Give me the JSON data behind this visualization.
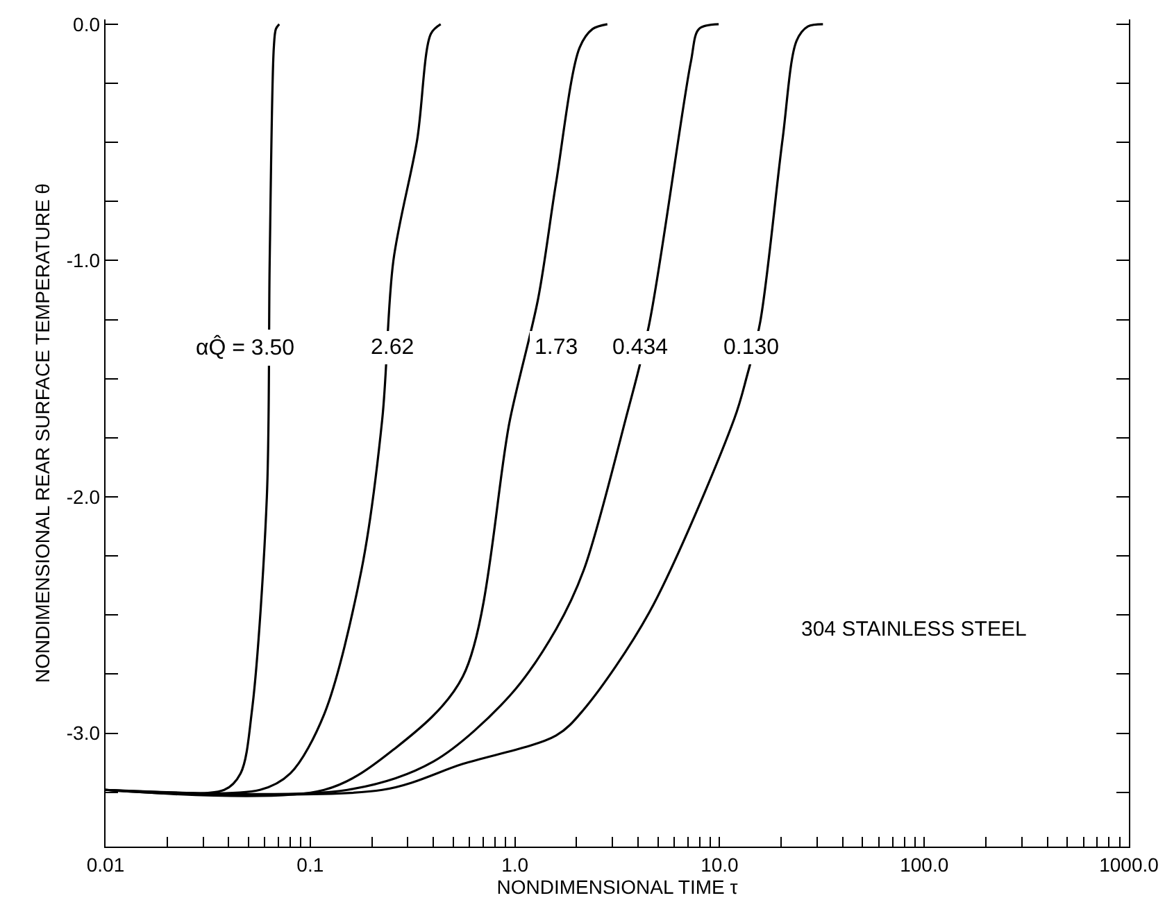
{
  "chart_data": {
    "type": "line",
    "xlabel": "NONDIMENSIONAL TIME τ",
    "ylabel": "NONDIMENSIONAL REAR SURFACE TEMPERATURE θ",
    "log": "x",
    "grid": false,
    "marker": "none",
    "line_style": "solid",
    "xlim": [
      0.01,
      1000
    ],
    "ylim": [
      -3.48,
      0.02
    ],
    "xticks": [
      {
        "value": 0.01,
        "label": "0.01"
      },
      {
        "value": 0.02,
        "label": null
      },
      {
        "value": 0.03,
        "label": null
      },
      {
        "value": 0.04,
        "label": null
      },
      {
        "value": 0.05,
        "label": null
      },
      {
        "value": 0.06,
        "label": null
      },
      {
        "value": 0.07,
        "label": null
      },
      {
        "value": 0.08,
        "label": null
      },
      {
        "value": 0.09,
        "label": null
      },
      {
        "value": 0.1,
        "label": "0.1"
      },
      {
        "value": 0.2,
        "label": null
      },
      {
        "value": 0.3,
        "label": null
      },
      {
        "value": 0.4,
        "label": null
      },
      {
        "value": 0.5,
        "label": null
      },
      {
        "value": 0.6,
        "label": null
      },
      {
        "value": 0.7,
        "label": null
      },
      {
        "value": 0.8,
        "label": null
      },
      {
        "value": 0.9,
        "label": null
      },
      {
        "value": 1,
        "label": "1.0"
      },
      {
        "value": 2,
        "label": null
      },
      {
        "value": 3,
        "label": null
      },
      {
        "value": 4,
        "label": null
      },
      {
        "value": 5,
        "label": null
      },
      {
        "value": 6,
        "label": null
      },
      {
        "value": 7,
        "label": null
      },
      {
        "value": 8,
        "label": null
      },
      {
        "value": 9,
        "label": null
      },
      {
        "value": 10,
        "label": "10.0"
      },
      {
        "value": 20,
        "label": null
      },
      {
        "value": 30,
        "label": null
      },
      {
        "value": 40,
        "label": null
      },
      {
        "value": 50,
        "label": null
      },
      {
        "value": 60,
        "label": null
      },
      {
        "value": 70,
        "label": null
      },
      {
        "value": 80,
        "label": null
      },
      {
        "value": 90,
        "label": null
      },
      {
        "value": 100,
        "label": "100.0"
      },
      {
        "value": 200,
        "label": null
      },
      {
        "value": 300,
        "label": null
      },
      {
        "value": 400,
        "label": null
      },
      {
        "value": 500,
        "label": null
      },
      {
        "value": 600,
        "label": null
      },
      {
        "value": 700,
        "label": null
      },
      {
        "value": 800,
        "label": null
      },
      {
        "value": 900,
        "label": null
      },
      {
        "value": 1000,
        "label": "1000.0"
      }
    ],
    "yticks": [
      {
        "value": 0,
        "label": "0.0"
      },
      {
        "value": -0.25,
        "label": null
      },
      {
        "value": -0.5,
        "label": null
      },
      {
        "value": -0.75,
        "label": null
      },
      {
        "value": -1,
        "label": "-1.0"
      },
      {
        "value": -1.25,
        "label": null
      },
      {
        "value": -1.5,
        "label": null
      },
      {
        "value": -1.75,
        "label": null
      },
      {
        "value": -2,
        "label": "-2.0"
      },
      {
        "value": -2.25,
        "label": null
      },
      {
        "value": -2.5,
        "label": null
      },
      {
        "value": -2.75,
        "label": null
      },
      {
        "value": -3,
        "label": "-3.0"
      },
      {
        "value": -3.25,
        "label": null
      }
    ],
    "series": [
      {
        "color": "#000000",
        "x": [
          0.01,
          0.038,
          0.0457,
          0.052,
          0.0614,
          0.0634,
          0.0664,
          0.068,
          0.0706
        ],
        "values": [
          -3.24,
          -3.24,
          -3.17,
          -2.9,
          -2.0,
          -1.0,
          -0.1,
          -0.02,
          0.0
        ]
      },
      {
        "color": "#000000",
        "x": [
          0.01,
          0.0568,
          0.08,
          0.117,
          0.178,
          0.225,
          0.255,
          0.333,
          0.389,
          0.434
        ],
        "values": [
          -3.24,
          -3.24,
          -3.17,
          -2.92,
          -2.31,
          -1.67,
          -1.0,
          -0.49,
          -0.04,
          0.0
        ]
      },
      {
        "color": "#000000",
        "x": [
          0.01,
          0.117,
          0.255,
          0.557,
          0.948,
          1.3,
          1.59,
          2.07,
          2.4,
          2.83
        ],
        "values": [
          -3.24,
          -3.24,
          -3.07,
          -2.76,
          -1.67,
          -1.16,
          -0.67,
          -0.1,
          -0.02,
          0.0
        ]
      },
      {
        "color": "#000000",
        "x": [
          0.01,
          0.152,
          0.4,
          0.948,
          1.59,
          2.17,
          3.48,
          4.53,
          7.24,
          7.94,
          9.9
        ],
        "values": [
          -3.24,
          -3.24,
          -3.12,
          -2.84,
          -2.56,
          -2.31,
          -1.67,
          -1.27,
          -0.16,
          -0.02,
          0.0
        ]
      },
      {
        "color": "#000000",
        "x": [
          0.01,
          0.225,
          0.557,
          1.59,
          2.17,
          4.53,
          11.8,
          13.6,
          15.8,
          20.3,
          23.8,
          27,
          32
        ],
        "values": [
          -3.24,
          -3.24,
          -3.13,
          -3.01,
          -2.9,
          -2.49,
          -1.67,
          -1.49,
          -1.26,
          -0.49,
          -0.07,
          -0.01,
          0.0
        ]
      }
    ],
    "annotations": [
      {
        "text": "αQ̂ = 3.50",
        "x": 0.063,
        "y": -1.37
      },
      {
        "text": "2.62",
        "x": 0.25,
        "y": -1.37
      },
      {
        "text": "1.73",
        "x": 1.59,
        "y": -1.37
      },
      {
        "text": "0.434",
        "x": 4.06,
        "y": -1.37
      },
      {
        "text": "0.130",
        "x": 14.2,
        "y": -1.37
      },
      "304 STAINLESS STEEL"
    ]
  }
}
